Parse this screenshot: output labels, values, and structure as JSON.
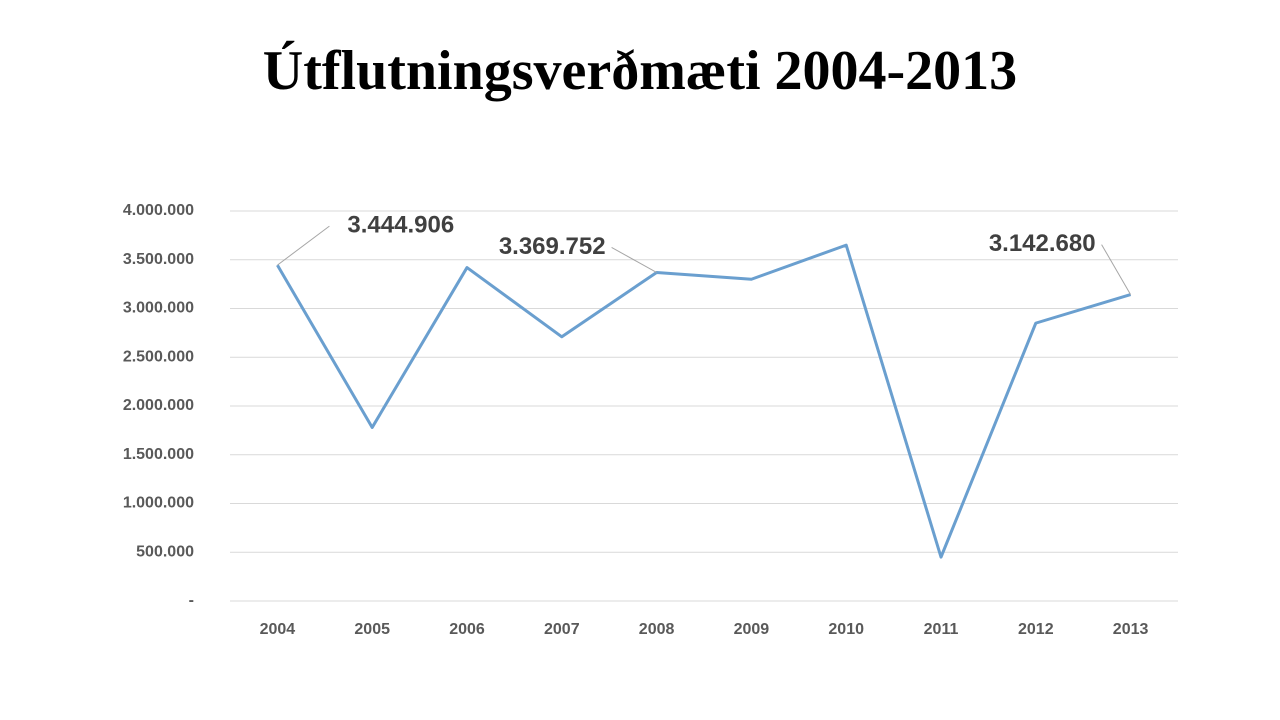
{
  "chart_data": {
    "type": "line",
    "title": "Útflutningsverðmæti 2004-2013",
    "categories": [
      "2004",
      "2005",
      "2006",
      "2007",
      "2008",
      "2009",
      "2010",
      "2011",
      "2012",
      "2013"
    ],
    "values": [
      3444906,
      1780000,
      3420000,
      2710000,
      3369752,
      3300000,
      3650000,
      450000,
      2850000,
      3142680
    ],
    "value_labels": [
      "3.444.906",
      null,
      null,
      null,
      "3.369.752",
      null,
      null,
      null,
      null,
      "3.142.680"
    ],
    "color": "#6a9fcf",
    "ylim": [
      0,
      4000000
    ],
    "yticks": [
      {
        "value": 0,
        "label": "-"
      },
      {
        "value": 500000,
        "label": "500.000"
      },
      {
        "value": 1000000,
        "label": "1.000.000"
      },
      {
        "value": 1500000,
        "label": "1.500.000"
      },
      {
        "value": 2000000,
        "label": "2.000.000"
      },
      {
        "value": 2500000,
        "label": "2.500.000"
      },
      {
        "value": 3000000,
        "label": "3.000.000"
      },
      {
        "value": 3500000,
        "label": "3.500.000"
      },
      {
        "value": 4000000,
        "label": "4.000.000"
      }
    ],
    "grid": true
  }
}
